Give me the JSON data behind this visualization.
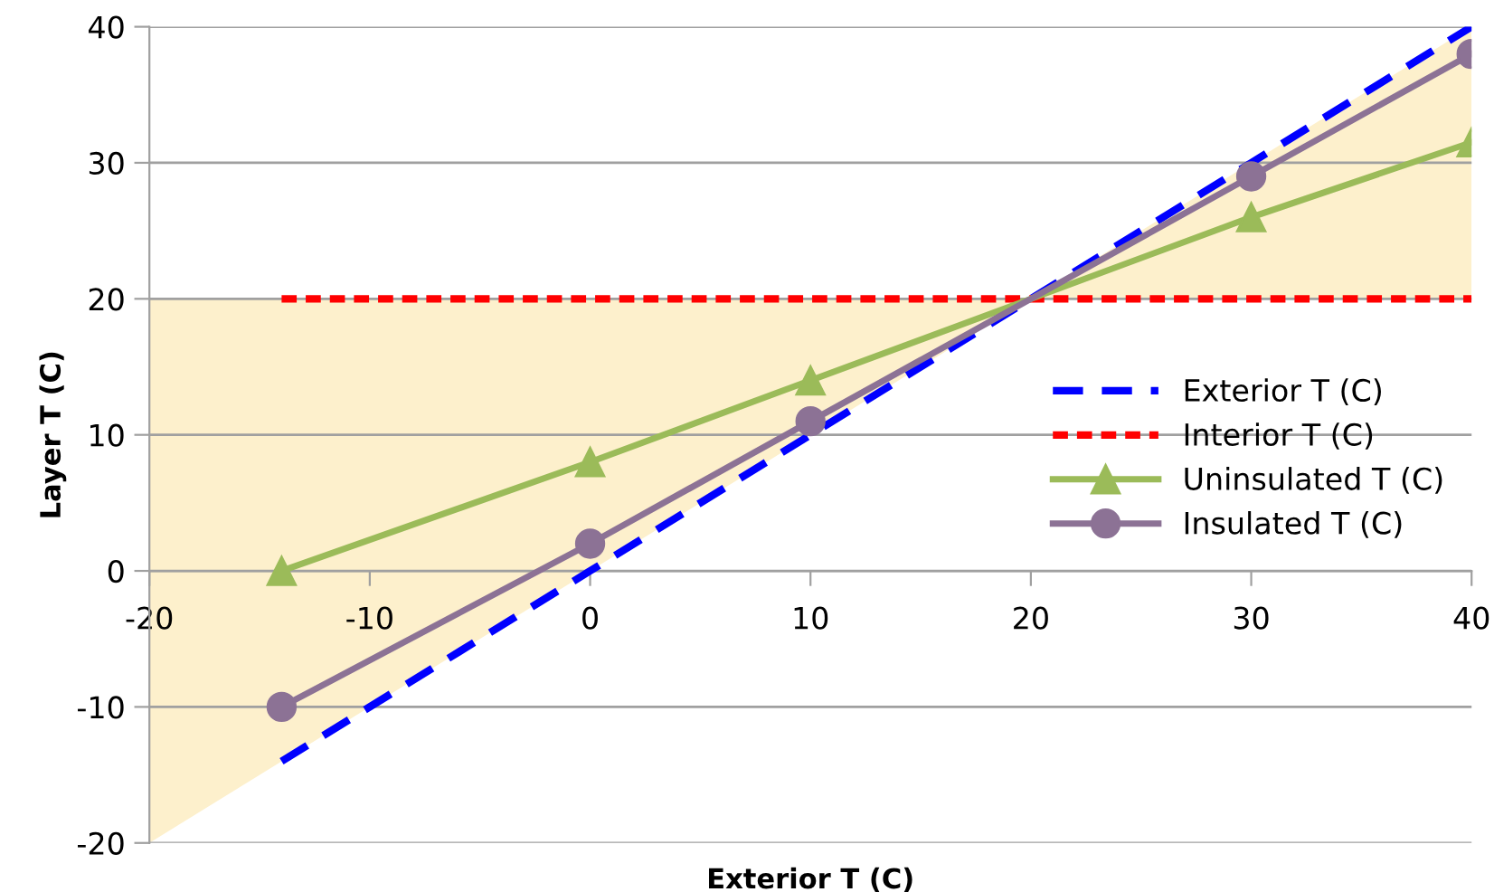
{
  "chart_data": {
    "type": "line",
    "xlabel": "Exterior T (C)",
    "ylabel": "Layer T (C)",
    "xlim": [
      -20,
      40
    ],
    "xticks": [
      -20,
      -10,
      0,
      10,
      20,
      30,
      40
    ],
    "ylim": [
      -20,
      40
    ],
    "yticks": [
      -20,
      -10,
      0,
      10,
      20,
      30,
      40
    ],
    "grid": "y",
    "legend": "right",
    "series": [
      {
        "name": "Exterior T (C)",
        "color": "#0000ff",
        "line_style": "dashed",
        "marker": "none",
        "x": [
          -14,
          0,
          10,
          30,
          40
        ],
        "values": [
          -14,
          0,
          10,
          30,
          40
        ]
      },
      {
        "name": "Interior T (C)",
        "color": "#ff0000",
        "line_style": "dotted",
        "marker": "none",
        "x": [
          -14,
          0,
          10,
          30,
          40
        ],
        "values": [
          20,
          20,
          20,
          20,
          20
        ]
      },
      {
        "name": "Uninsulated T (C)",
        "color": "#9bbb59",
        "line_style": "solid",
        "marker": "triangle",
        "x": [
          -14,
          0,
          10,
          30,
          40
        ],
        "values": [
          0,
          8,
          14,
          26,
          31.5
        ]
      },
      {
        "name": "Insulated T (C)",
        "color": "#8c7295",
        "line_style": "solid",
        "marker": "circle",
        "x": [
          -14,
          0,
          10,
          30,
          40
        ],
        "values": [
          -10,
          2,
          11,
          29,
          38
        ]
      }
    ]
  }
}
